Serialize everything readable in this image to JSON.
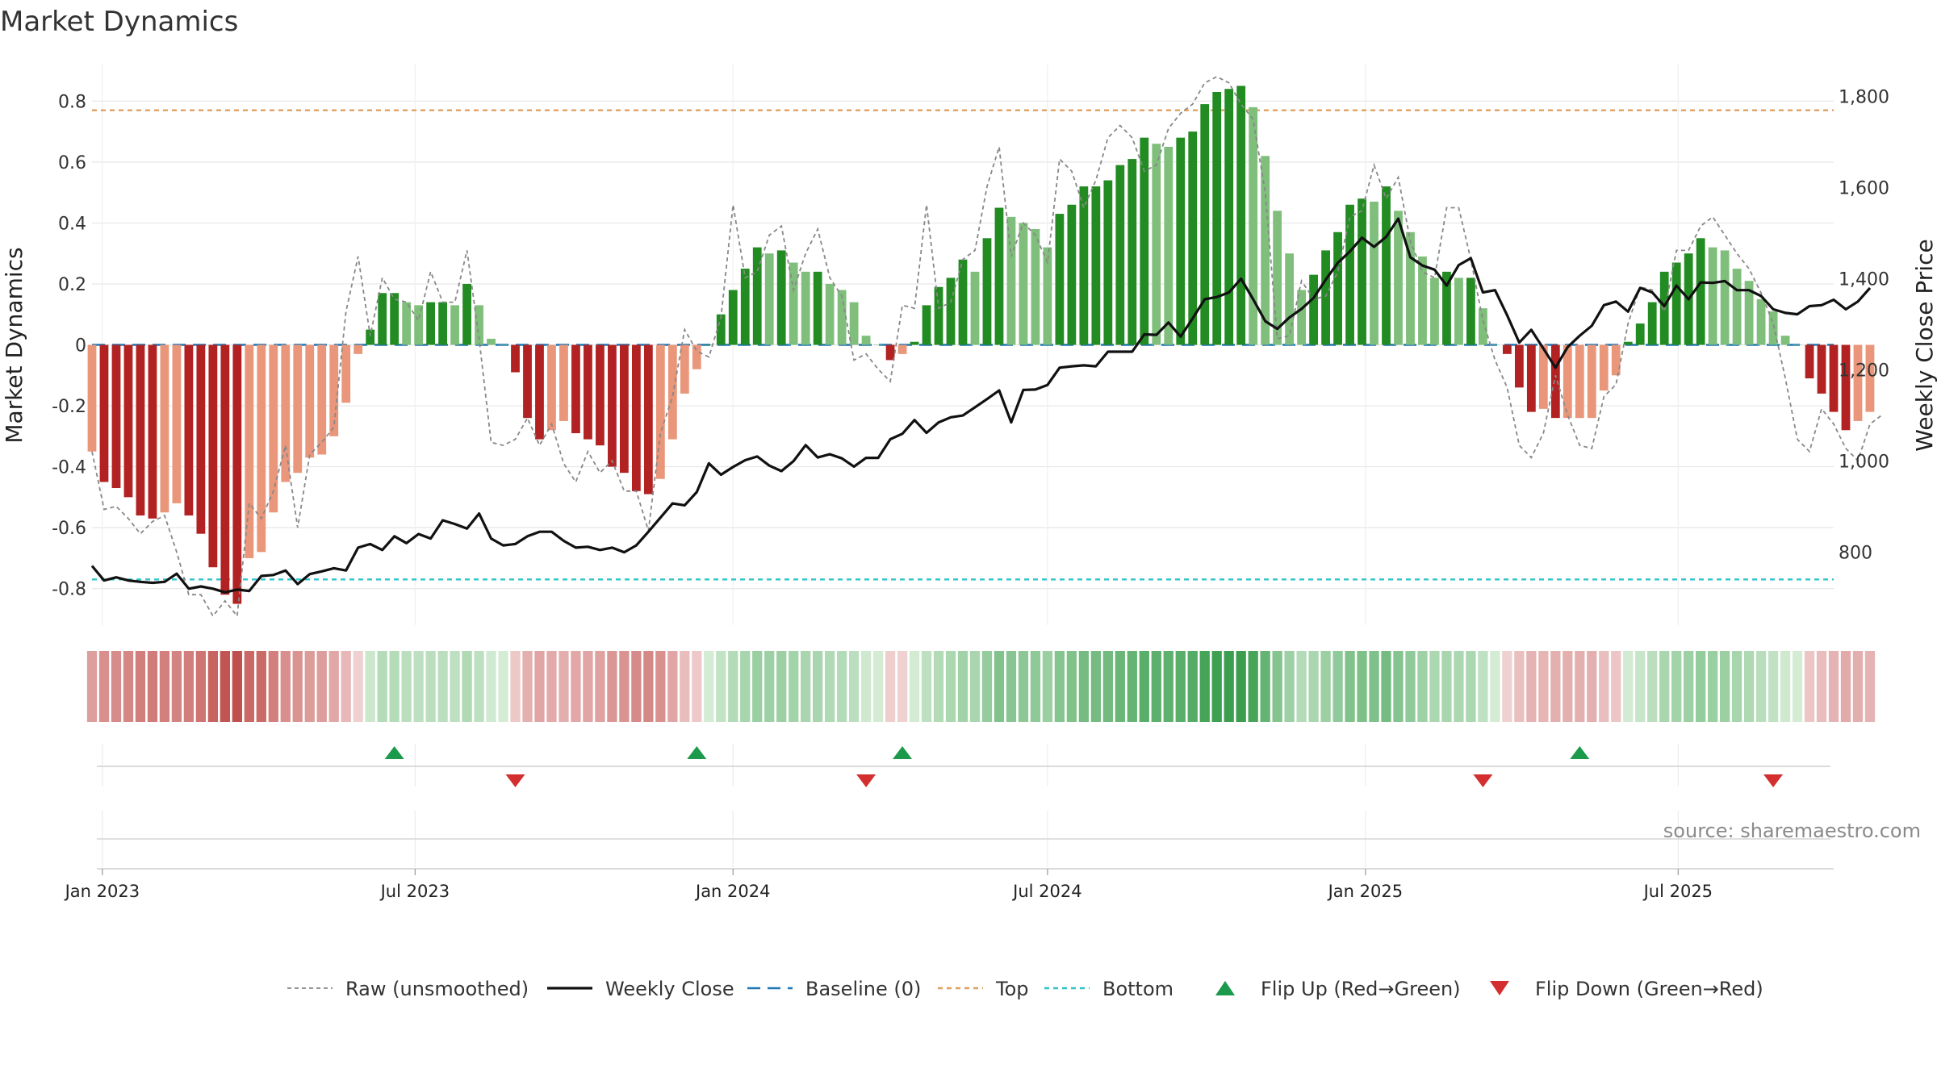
{
  "chart_data": {
    "type": "bar",
    "title": "Market Dynamics",
    "ylabel": "Market Dynamics",
    "y2label": "Weekly Close Price",
    "ylim": [
      -0.92,
      0.92
    ],
    "y2lim": [
      640,
      1870
    ],
    "yticks": [
      "-0.8",
      "-0.6",
      "-0.4",
      "-0.2",
      "0",
      "0.2",
      "0.4",
      "0.6",
      "0.8"
    ],
    "y2ticks": [
      "800",
      "1,000",
      "1,200",
      "1,400",
      "1,600",
      "1,800"
    ],
    "x_start": "2022-12-26",
    "x_end": "2025-09-29",
    "xticks": [
      {
        "date": "2023-01-01",
        "label": "Jan 2023"
      },
      {
        "date": "2023-07-01",
        "label": "Jul 2023"
      },
      {
        "date": "2024-01-01",
        "label": "Jan 2024"
      },
      {
        "date": "2024-07-01",
        "label": "Jul 2024"
      },
      {
        "date": "2025-01-01",
        "label": "Jan 2025"
      },
      {
        "date": "2025-07-01",
        "label": "Jul 2025"
      }
    ],
    "first_week": "2022-12-26",
    "top_level": 0.77,
    "bottom_level": -0.77,
    "baseline": 0,
    "dynamics": [
      -0.35,
      -0.45,
      -0.47,
      -0.5,
      -0.56,
      -0.57,
      -0.55,
      -0.52,
      -0.56,
      -0.62,
      -0.73,
      -0.82,
      -0.85,
      -0.7,
      -0.68,
      -0.55,
      -0.45,
      -0.42,
      -0.37,
      -0.36,
      -0.3,
      -0.19,
      -0.03,
      0.05,
      0.17,
      0.17,
      0.14,
      0.13,
      0.14,
      0.14,
      0.13,
      0.2,
      0.13,
      0.02,
      0,
      -0.09,
      -0.24,
      -0.31,
      -0.28,
      -0.25,
      -0.29,
      -0.31,
      -0.33,
      -0.4,
      -0.42,
      -0.48,
      -0.49,
      -0.44,
      -0.31,
      -0.16,
      -0.08,
      0,
      0.1,
      0.18,
      0.25,
      0.32,
      0.3,
      0.31,
      0.27,
      0.24,
      0.24,
      0.2,
      0.18,
      0.14,
      0.03,
      0,
      -0.05,
      -0.03,
      0.01,
      0.13,
      0.19,
      0.22,
      0.28,
      0.24,
      0.35,
      0.45,
      0.42,
      0.4,
      0.38,
      0.32,
      0.43,
      0.46,
      0.52,
      0.52,
      0.54,
      0.59,
      0.61,
      0.68,
      0.66,
      0.65,
      0.68,
      0.7,
      0.79,
      0.83,
      0.84,
      0.85,
      0.78,
      0.62,
      0.44,
      0.3,
      0.18,
      0.23,
      0.31,
      0.37,
      0.46,
      0.48,
      0.47,
      0.52,
      0.44,
      0.37,
      0.29,
      0.22,
      0.24,
      0.22,
      0.22,
      0.12,
      0,
      -0.03,
      -0.14,
      -0.22,
      -0.21,
      -0.24,
      -0.24,
      -0.24,
      -0.24,
      -0.15,
      -0.1,
      0.01,
      0.07,
      0.14,
      0.24,
      0.27,
      0.3,
      0.35,
      0.32,
      0.31,
      0.25,
      0.21,
      0.15,
      0.11,
      0.03,
      0,
      -0.11,
      -0.16,
      -0.22,
      -0.28,
      -0.25,
      -0.22
    ],
    "raw": [
      -0.35,
      -0.54,
      -0.53,
      -0.57,
      -0.62,
      -0.58,
      -0.56,
      -0.68,
      -0.82,
      -0.82,
      -0.89,
      -0.84,
      -0.89,
      -0.52,
      -0.57,
      -0.48,
      -0.33,
      -0.6,
      -0.36,
      -0.32,
      -0.27,
      0.11,
      0.29,
      0.03,
      0.22,
      0.15,
      0.14,
      0.08,
      0.24,
      0.14,
      0.14,
      0.31,
      0.02,
      -0.32,
      -0.33,
      -0.31,
      -0.24,
      -0.33,
      -0.26,
      -0.39,
      -0.45,
      -0.35,
      -0.42,
      -0.38,
      -0.48,
      -0.48,
      -0.61,
      -0.29,
      -0.17,
      0.05,
      -0.02,
      -0.04,
      0.09,
      0.46,
      0.22,
      0.24,
      0.36,
      0.39,
      0.18,
      0.3,
      0.38,
      0.22,
      0.16,
      -0.05,
      -0.03,
      -0.08,
      -0.12,
      0.13,
      0.12,
      0.46,
      0.12,
      0.14,
      0.28,
      0.31,
      0.52,
      0.65,
      0.29,
      0.4,
      0.36,
      0.27,
      0.61,
      0.57,
      0.45,
      0.54,
      0.68,
      0.72,
      0.68,
      0.57,
      0.59,
      0.71,
      0.76,
      0.79,
      0.86,
      0.88,
      0.86,
      0.79,
      0.74,
      0.5,
      0.02,
      0.03,
      0.21,
      0.15,
      0.16,
      0.24,
      0.42,
      0.44,
      0.59,
      0.48,
      0.55,
      0.34,
      0.24,
      0.22,
      0.45,
      0.45,
      0.28,
      0.08,
      -0.05,
      -0.14,
      -0.33,
      -0.37,
      -0.29,
      -0.1,
      -0.23,
      -0.33,
      -0.34,
      -0.17,
      -0.13,
      0.07,
      0.19,
      0.18,
      0.11,
      0.31,
      0.31,
      0.39,
      0.42,
      0.36,
      0.3,
      0.25,
      0.17,
      0.07,
      -0.11,
      -0.31,
      -0.35,
      -0.21,
      -0.26,
      -0.34,
      -0.38,
      -0.26,
      -0.23
    ],
    "weekly_close": [
      770,
      738,
      745,
      738,
      735,
      733,
      735,
      753,
      720,
      725,
      720,
      712,
      718,
      715,
      748,
      750,
      760,
      730,
      752,
      758,
      765,
      760,
      810,
      818,
      805,
      835,
      820,
      840,
      830,
      870,
      862,
      852,
      885,
      830,
      815,
      818,
      835,
      845,
      845,
      825,
      810,
      812,
      805,
      810,
      800,
      815,
      845,
      876,
      907,
      903,
      932,
      995,
      970,
      987,
      1002,
      1010,
      990,
      978,
      1000,
      1035,
      1008,
      1015,
      1006,
      988,
      1007,
      1007,
      1048,
      1060,
      1090,
      1062,
      1085,
      1096,
      1100,
      1118,
      1136,
      1155,
      1085,
      1156,
      1157,
      1167,
      1205,
      1208,
      1210,
      1208,
      1240,
      1240,
      1240,
      1278,
      1277,
      1304,
      1273,
      1313,
      1355,
      1360,
      1370,
      1400,
      1355,
      1307,
      1290,
      1315,
      1334,
      1358,
      1398,
      1435,
      1460,
      1490,
      1470,
      1492,
      1532,
      1447,
      1429,
      1420,
      1385,
      1430,
      1445,
      1370,
      1375,
      1320,
      1260,
      1288,
      1247,
      1205,
      1250,
      1275,
      1297,
      1342,
      1350,
      1328,
      1380,
      1370,
      1340,
      1385,
      1355,
      1392,
      1391,
      1395,
      1375,
      1375,
      1362,
      1333,
      1325,
      1322,
      1340,
      1342,
      1354,
      1333,
      1350,
      1380
    ],
    "flips_up": [
      "2023-06-19",
      "2023-12-11",
      "2024-04-08",
      "2025-05-05"
    ],
    "flips_down": [
      "2023-08-28",
      "2024-03-18",
      "2025-03-10",
      "2025-08-25"
    ],
    "legend": [
      "Raw (unsmoothed)",
      "Weekly Close",
      "Baseline (0)",
      "Top",
      "Bottom",
      "Flip Up (Red→Green)",
      "Flip Down (Green→Red)"
    ],
    "legend_placement": "bottom",
    "grid": true
  },
  "source_text": "source: sharemaestro.com",
  "colors": {
    "green_strong": "#228b22",
    "green_light": "#7fbf7b",
    "red_strong": "#b22222",
    "red_light": "#e9967a",
    "raw_line": "#888888",
    "close_line": "#111111",
    "baseline": "#1f77b4",
    "top": "#e0a060",
    "bottom": "#2ec4c8",
    "flip_up": "#1a9a4a",
    "flip_down": "#d32f2f"
  }
}
